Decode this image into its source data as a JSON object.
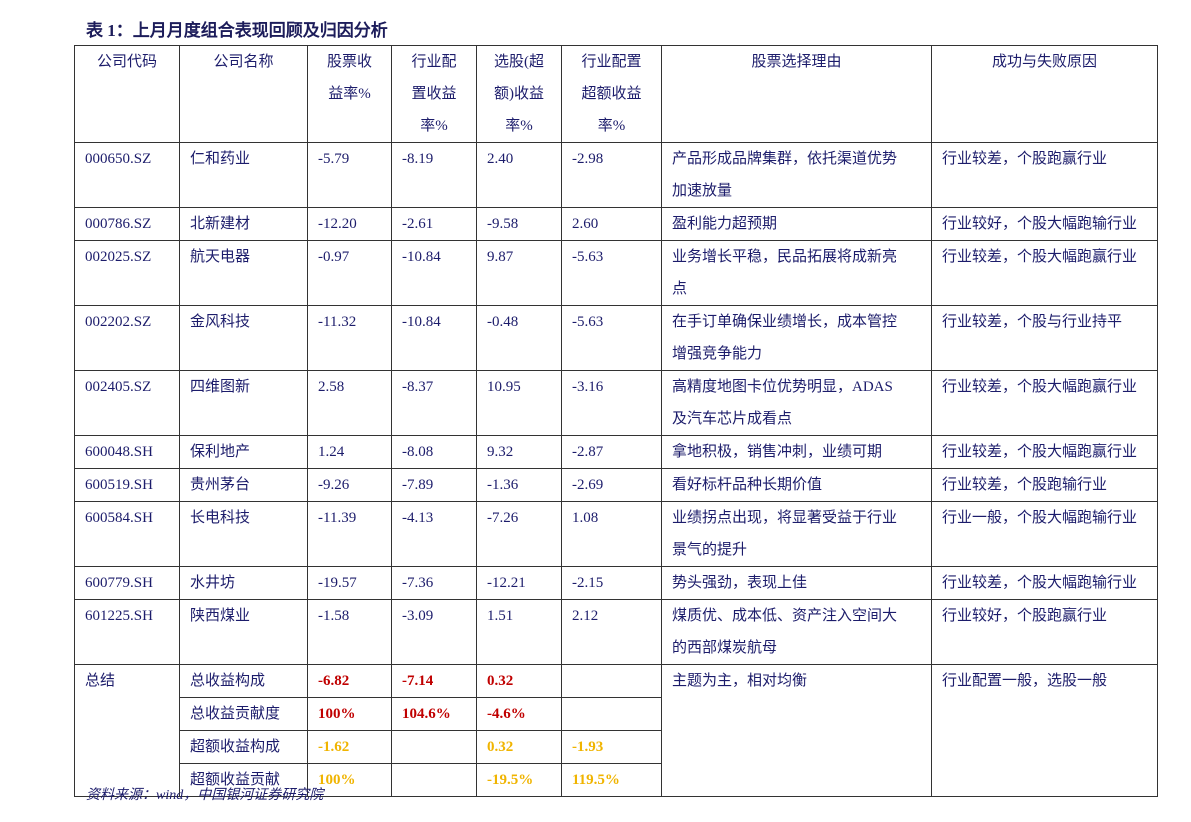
{
  "title": "表 1：上月月度组合表现回顾及归因分析",
  "table": {
    "header": [
      "公司代码",
      "公司名称",
      "股票收益率%",
      "行业配置收益率%",
      "选股(超额)收益率%",
      "行业配置超额收益率%",
      "股票选择理由",
      "成功与失败原因"
    ],
    "rows": [
      [
        "000650.SZ",
        "仁和药业",
        "-5.79",
        "-8.19",
        "2.40",
        "-2.98",
        "产品形成品牌集群，依托渠道优势加速放量",
        "行业较差，个股跑赢行业"
      ],
      [
        "000786.SZ",
        "北新建材",
        "-12.20",
        "-2.61",
        "-9.58",
        "2.60",
        "盈利能力超预期",
        "行业较好，个股大幅跑输行业"
      ],
      [
        "002025.SZ",
        "航天电器",
        "-0.97",
        "-10.84",
        "9.87",
        "-5.63",
        "业务增长平稳，民品拓展将成新亮点",
        "行业较差，个股大幅跑赢行业"
      ],
      [
        "002202.SZ",
        "金风科技",
        "-11.32",
        "-10.84",
        "-0.48",
        "-5.63",
        "在手订单确保业绩增长，成本管控增强竞争能力",
        "行业较差，个股与行业持平"
      ],
      [
        "002405.SZ",
        "四维图新",
        "2.58",
        "-8.37",
        "10.95",
        "-3.16",
        "高精度地图卡位优势明显，ADAS及汽车芯片成看点",
        "行业较差，个股大幅跑赢行业"
      ],
      [
        "600048.SH",
        "保利地产",
        "1.24",
        "-8.08",
        "9.32",
        "-2.87",
        "拿地积极，销售冲刺，业绩可期",
        "行业较差，个股大幅跑赢行业"
      ],
      [
        "600519.SH",
        "贵州茅台",
        "-9.26",
        "-7.89",
        "-1.36",
        "-2.69",
        "看好标杆品种长期价值",
        "行业较差，个股跑输行业"
      ],
      [
        "600584.SH",
        "长电科技",
        "-11.39",
        "-4.13",
        "-7.26",
        "1.08",
        "业绩拐点出现，将显著受益于行业景气的提升",
        "行业一般，个股大幅跑输行业"
      ],
      [
        "600779.SH",
        "水井坊",
        "-19.57",
        "-7.36",
        "-12.21",
        "-2.15",
        "势头强劲，表现上佳",
        "行业较差，个股大幅跑输行业"
      ],
      [
        "601225.SH",
        "陕西煤业",
        "-1.58",
        "-3.09",
        "1.51",
        "2.12",
        "煤质优、成本低、资产注入空间大的西部煤炭航母",
        "行业较好，个股跑赢行业"
      ]
    ],
    "summary": {
      "label": "总结",
      "rows": [
        [
          "总收益构成",
          "-6.82",
          "-7.14",
          "0.32",
          null
        ],
        [
          "总收益贡献度",
          "100%",
          "104.6%",
          "-4.6%",
          null
        ],
        [
          "超额收益构成",
          "-1.62",
          null,
          "0.32",
          "-1.93"
        ],
        [
          "超额收益贡献",
          "100%",
          null,
          "-19.5%",
          "119.5%"
        ]
      ],
      "reason": "主题为主，相对均衡",
      "outcome": "行业配置一般，选股一般"
    }
  },
  "source": "资料来源：wind，中国银河证券研究院"
}
